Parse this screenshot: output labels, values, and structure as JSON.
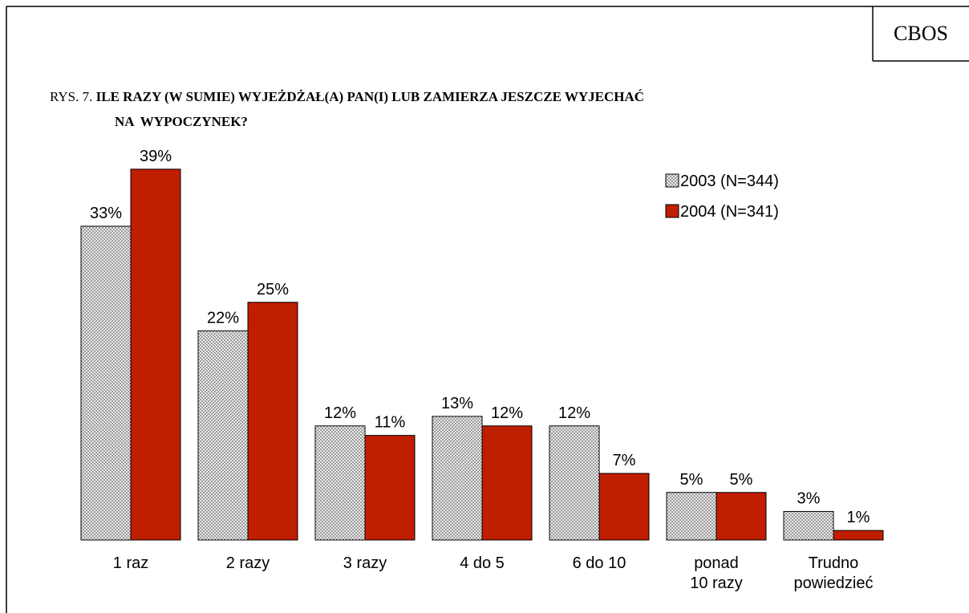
{
  "chart_data": {
    "type": "bar",
    "source": "CBOS",
    "label": "RYS. 7.",
    "title": [
      "ILE RAZY (W SUMIE) WYJEŻDŻAŁ(A) PAN(I) LUB ZAMIERZA JESZCZE WYJECHAĆ",
      "NA  WYPOCZYNEK?"
    ],
    "categories": [
      [
        "1 raz"
      ],
      [
        "2 razy"
      ],
      [
        "3 razy"
      ],
      [
        "4 do 5"
      ],
      [
        "6 do 10"
      ],
      [
        "ponad",
        "10 razy"
      ],
      [
        "Trudno",
        "powiedzieć"
      ]
    ],
    "series": [
      {
        "name": "2003 (N=344)",
        "color": "#c8c8c8",
        "pattern": "crosshatch",
        "values": [
          33,
          22,
          12,
          13,
          12,
          5,
          3
        ],
        "value_labels": [
          "33%",
          "22%",
          "12%",
          "13%",
          "12%",
          "5%",
          "3%"
        ]
      },
      {
        "name": "2004 (N=341)",
        "color": "#c01e00",
        "values": [
          39,
          25,
          11,
          12,
          7,
          5,
          1
        ],
        "value_labels": [
          "39%",
          "25%",
          "11%",
          "12%",
          "7%",
          "5%",
          "1%"
        ]
      }
    ],
    "ylim": [
      0,
      40
    ]
  }
}
